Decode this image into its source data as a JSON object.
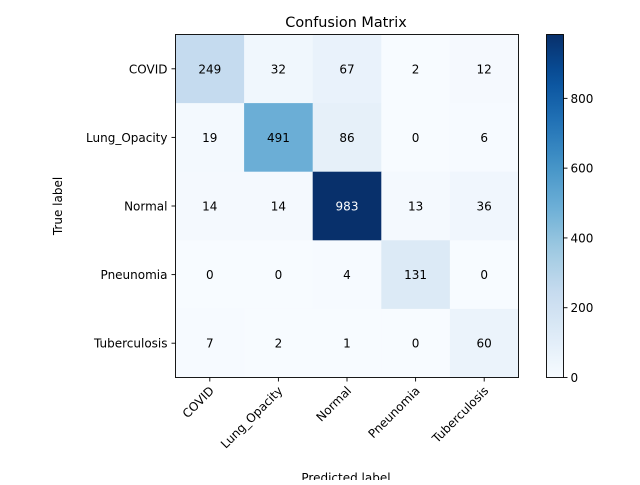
{
  "chart_data": {
    "type": "heatmap",
    "title": "Confusion Matrix",
    "xlabel": "Predicted label",
    "ylabel": "True label",
    "x_categories": [
      "COVID",
      "Lung_Opacity",
      "Normal",
      "Pneunomia",
      "Tuberculosis"
    ],
    "y_categories": [
      "COVID",
      "Lung_Opacity",
      "Normal",
      "Pneunomia",
      "Tuberculosis"
    ],
    "values": [
      [
        249,
        32,
        67,
        2,
        12
      ],
      [
        19,
        491,
        86,
        0,
        6
      ],
      [
        14,
        14,
        983,
        13,
        36
      ],
      [
        0,
        0,
        4,
        131,
        0
      ],
      [
        7,
        2,
        1,
        0,
        60
      ]
    ],
    "colormap": "Blues",
    "vmin": 0,
    "vmax": 983,
    "colorbar_ticks": [
      0,
      200,
      400,
      600,
      800
    ],
    "colors": {
      "low": "#f7fbff",
      "high": "#08306b",
      "text_dark": "#000000",
      "text_light": "#ffffff"
    }
  }
}
